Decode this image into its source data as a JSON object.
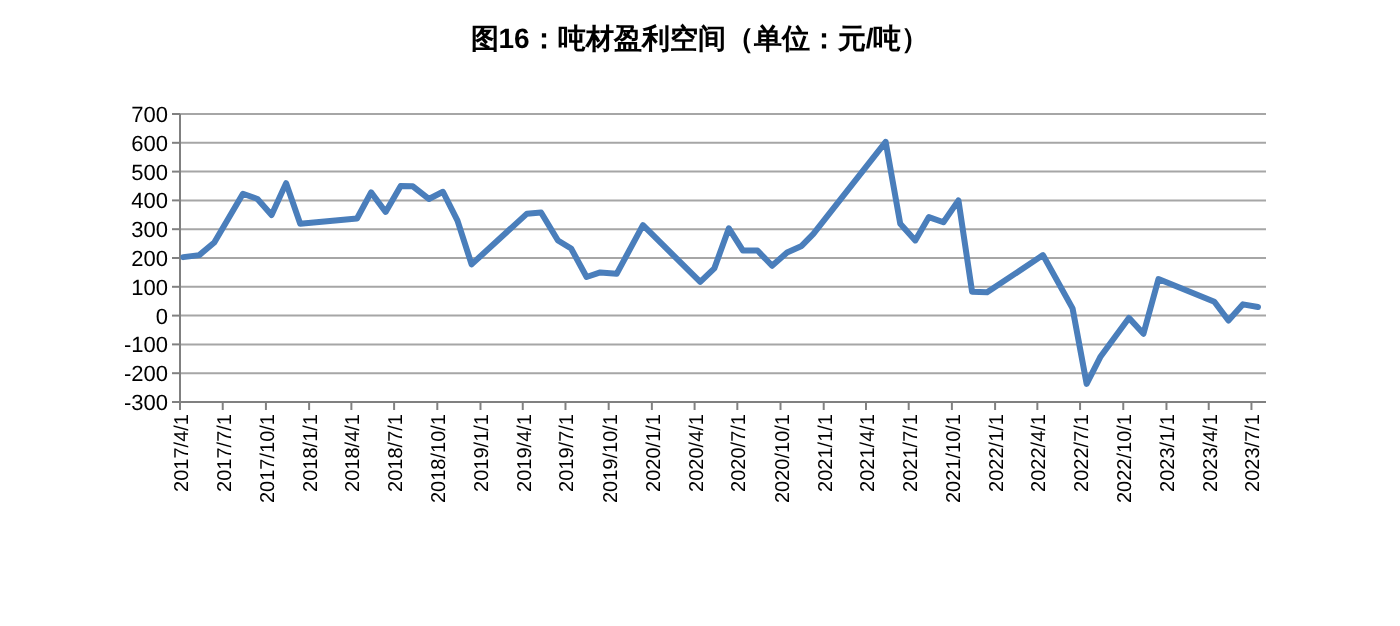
{
  "chart_data": {
    "type": "line",
    "title": "图16：吨材盈利空间（单位：元/吨）",
    "x": [
      "2017-04-08",
      "2017-05-12",
      "2017-06-13",
      "2017-08-13",
      "2017-09-13",
      "2017-10-13",
      "2017-11-13",
      "2017-12-13",
      "2018-04-13",
      "2018-05-13",
      "2018-06-13",
      "2018-07-15",
      "2018-08-10",
      "2018-09-13",
      "2018-10-13",
      "2018-11-13",
      "2018-12-13",
      "2019-04-10",
      "2019-05-10",
      "2019-06-15",
      "2019-07-13",
      "2019-08-15",
      "2019-09-13",
      "2019-10-18",
      "2019-12-13",
      "2020-04-13",
      "2020-05-13",
      "2020-06-13",
      "2020-07-13",
      "2020-08-13",
      "2020-09-13",
      "2020-10-15",
      "2020-11-15",
      "2020-12-10",
      "2021-05-13",
      "2021-06-13",
      "2021-07-15",
      "2021-08-13",
      "2021-09-13",
      "2021-10-15",
      "2021-11-13",
      "2021-12-15",
      "2022-04-13",
      "2022-06-15",
      "2022-07-15",
      "2022-08-13",
      "2022-10-13",
      "2022-11-13",
      "2022-12-15",
      "2023-04-13",
      "2023-05-13",
      "2023-06-13",
      "2023-07-15"
    ],
    "series": [
      {
        "color": "#4a7ebb",
        "values": [
          203,
          210,
          254,
          423,
          405,
          349,
          460,
          319,
          337,
          428,
          360,
          450,
          449,
          405,
          430,
          330,
          178,
          354,
          358,
          261,
          233,
          134,
          150,
          145,
          314,
          117,
          164,
          303,
          226,
          226,
          173,
          219,
          242,
          284,
          603,
          319,
          261,
          342,
          324,
          400,
          83,
          81,
          210,
          25,
          -237,
          -144,
          -8,
          -63,
          127,
          48,
          -17,
          39,
          30
        ]
      }
    ],
    "ylim": [
      -300,
      700
    ],
    "yticks": [
      -300,
      -200,
      -100,
      0,
      100,
      200,
      300,
      400,
      500,
      600,
      700
    ],
    "xlim": [
      "2017-04-01",
      "2023-08-01"
    ],
    "xticks": [
      {
        "value": "2017-04-01",
        "label": "2017/4/1"
      },
      {
        "value": "2017-07-01",
        "label": "2017/7/1"
      },
      {
        "value": "2017-10-01",
        "label": "2017/10/1"
      },
      {
        "value": "2018-01-01",
        "label": "2018/1/1"
      },
      {
        "value": "2018-04-01",
        "label": "2018/4/1"
      },
      {
        "value": "2018-07-01",
        "label": "2018/7/1"
      },
      {
        "value": "2018-10-01",
        "label": "2018/10/1"
      },
      {
        "value": "2019-01-01",
        "label": "2019/1/1"
      },
      {
        "value": "2019-04-01",
        "label": "2019/4/1"
      },
      {
        "value": "2019-07-01",
        "label": "2019/7/1"
      },
      {
        "value": "2019-10-01",
        "label": "2019/10/1"
      },
      {
        "value": "2020-01-01",
        "label": "2020/1/1"
      },
      {
        "value": "2020-04-01",
        "label": "2020/4/1"
      },
      {
        "value": "2020-07-01",
        "label": "2020/7/1"
      },
      {
        "value": "2020-10-01",
        "label": "2020/10/1"
      },
      {
        "value": "2021-01-01",
        "label": "2021/1/1"
      },
      {
        "value": "2021-04-01",
        "label": "2021/4/1"
      },
      {
        "value": "2021-07-01",
        "label": "2021/7/1"
      },
      {
        "value": "2021-10-01",
        "label": "2021/10/1"
      },
      {
        "value": "2022-01-01",
        "label": "2022/1/1"
      },
      {
        "value": "2022-04-01",
        "label": "2022/4/1"
      },
      {
        "value": "2022-07-01",
        "label": "2022/7/1"
      },
      {
        "value": "2022-10-01",
        "label": "2022/10/1"
      },
      {
        "value": "2023-01-01",
        "label": "2023/1/1"
      },
      {
        "value": "2023-04-01",
        "label": "2023/4/1"
      },
      {
        "value": "2023-07-01",
        "label": "2023/7/1"
      }
    ],
    "grid": "y",
    "marker": "none",
    "line_style": "solid"
  }
}
